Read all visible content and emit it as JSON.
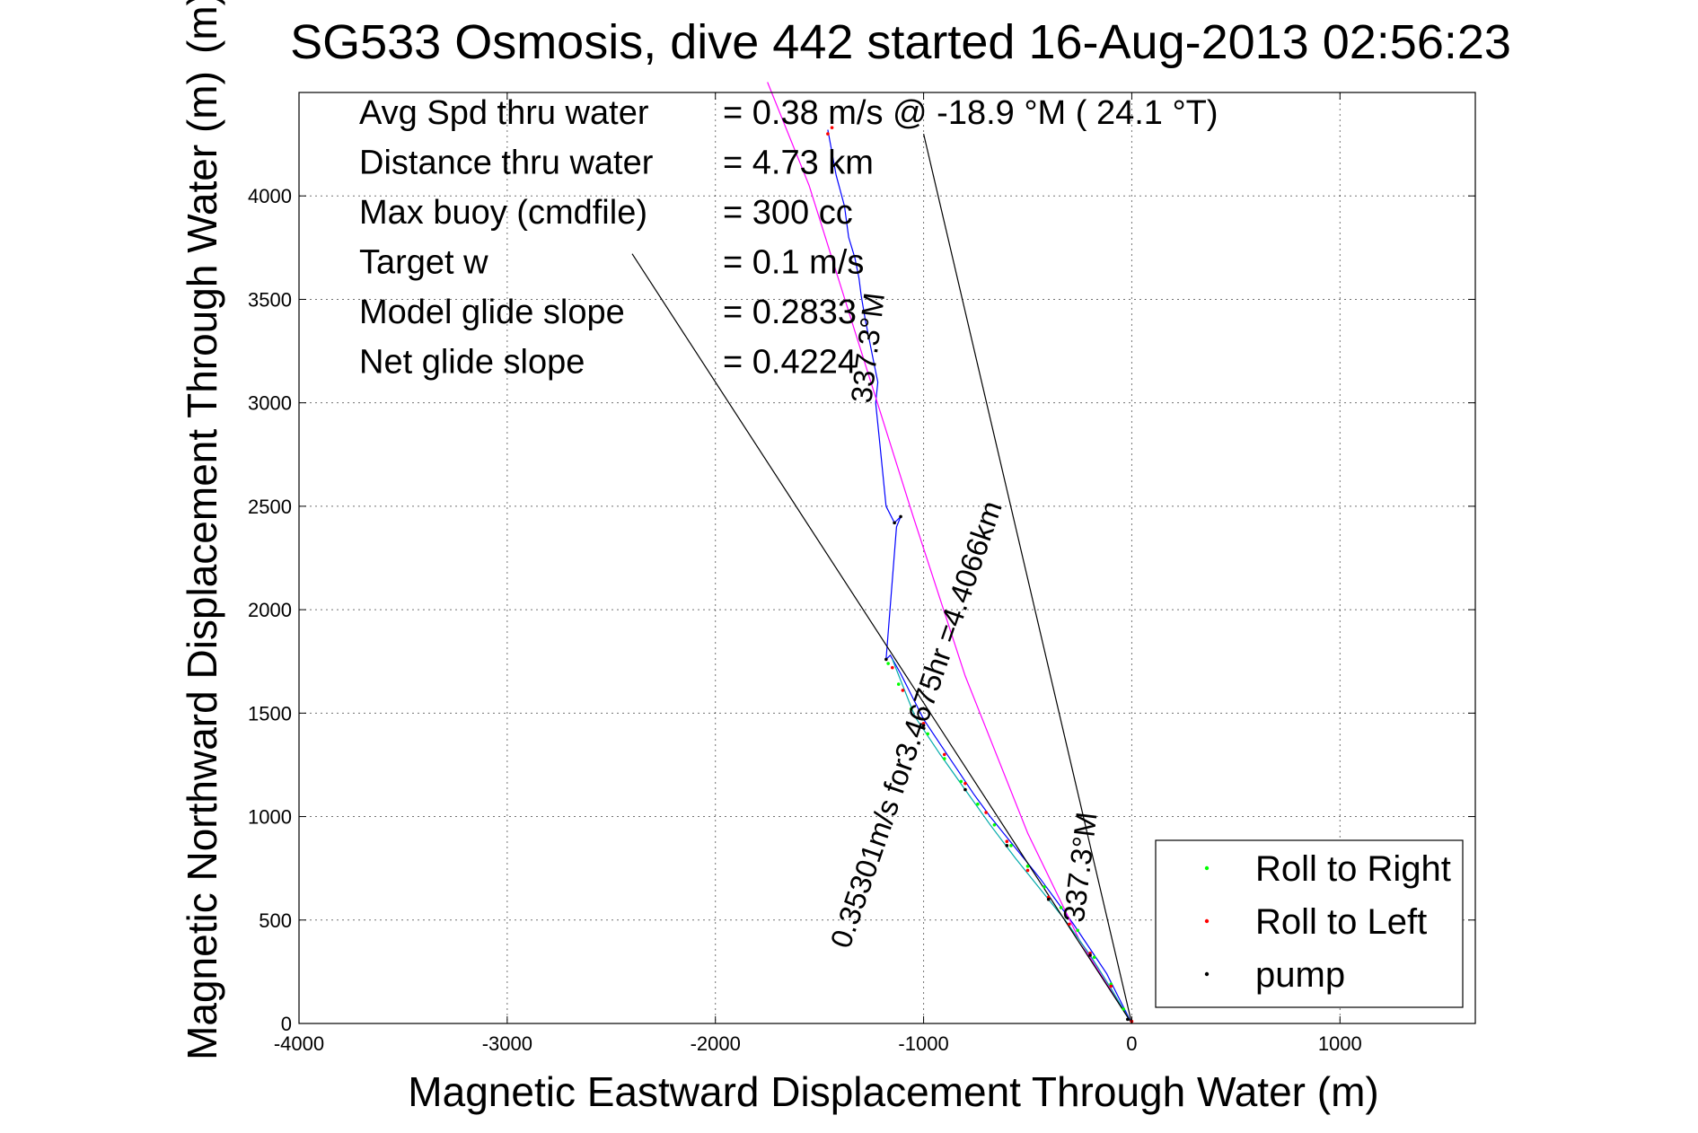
{
  "chart_data": {
    "type": "line",
    "title": "SG533 Osmosis, dive 442 started 16-Aug-2013 02:56:23",
    "title_overlay_glyph": "(m)",
    "xlabel": "Magnetic Eastward Displacement Through Water (m)",
    "ylabel": "Magnetic Northward Displacement Through Water (m)",
    "xlim": [
      -4000,
      1650
    ],
    "ylim": [
      0,
      4500
    ],
    "xticks": [
      -4000,
      -3000,
      -2000,
      -1000,
      0,
      1000
    ],
    "yticks": [
      0,
      500,
      1000,
      1500,
      2000,
      2500,
      3000,
      3500,
      4000
    ],
    "grid": true,
    "legend_position": "bottom-right",
    "legend": [
      {
        "name": "Roll to Right",
        "color": "#00ff00"
      },
      {
        "name": "Roll to Left",
        "color": "#ff0000"
      },
      {
        "name": "pump",
        "color": "#000000"
      }
    ],
    "info_lines": [
      {
        "label": "Avg Spd thru water",
        "value": "=  0.38 m/s @ -18.9 °M ( 24.1 °T)"
      },
      {
        "label": "Distance thru water",
        "value": "=  4.73 km"
      },
      {
        "label": "Max buoy (cmdfile)",
        "value": "= 300 cc"
      },
      {
        "label": "Target w",
        "value": "= 0.1 m/s"
      },
      {
        "label": "Model glide slope",
        "value": "= 0.2833"
      },
      {
        "label": "Net glide slope",
        "value": "= 0.4224"
      }
    ],
    "annotations": [
      {
        "text": "0.35301m/s for3.4675hr =4.4066km",
        "at": [
          -990,
          1430
        ],
        "angle": -71
      },
      {
        "text": "337.3°M",
        "at": [
          -1220,
          3260
        ],
        "angle": -83
      },
      {
        "text": "337.3°M",
        "at": [
          -200,
          750
        ],
        "angle": -83
      }
    ],
    "series": [
      {
        "name": "track",
        "color": "#0000ff",
        "x": [
          0,
          -50,
          -120,
          -200,
          -280,
          -360,
          -440,
          -520,
          -600,
          -680,
          -760,
          -840,
          -920,
          -1000,
          -1060,
          -1110,
          -1160,
          -1180,
          -1130,
          -1110,
          -1140,
          -1180,
          -1210,
          -1230,
          -1220,
          -1240,
          -1250,
          -1280,
          -1300,
          -1310,
          -1330,
          -1360,
          -1380,
          -1420,
          -1460
        ],
        "y": [
          0,
          100,
          240,
          360,
          480,
          590,
          700,
          800,
          900,
          1000,
          1110,
          1230,
          1350,
          1470,
          1590,
          1690,
          1780,
          1760,
          2400,
          2450,
          2420,
          2500,
          2800,
          3000,
          3100,
          3200,
          3250,
          3400,
          3520,
          3600,
          3700,
          3800,
          3950,
          4100,
          4320
        ]
      },
      {
        "name": "path-magenta",
        "color": "#ff00ff",
        "x": [
          0,
          -250,
          -500,
          -800,
          -1050,
          -1300,
          -1550,
          -1750
        ],
        "y": [
          0,
          400,
          920,
          1680,
          2450,
          3250,
          4050,
          4550
        ]
      },
      {
        "name": "path-cyan",
        "color": "#00aaaa",
        "x": [
          0,
          -100,
          -200,
          -320,
          -440,
          -560,
          -680,
          -800,
          -920,
          -1040,
          -1150
        ],
        "y": [
          0,
          170,
          330,
          500,
          650,
          800,
          960,
          1130,
          1300,
          1480,
          1760
        ]
      },
      {
        "name": "Roll to Right",
        "color": "#00ff00",
        "x": [
          -1170,
          -1120,
          -1060,
          -980,
          -900,
          -820,
          -740,
          -660,
          -580,
          -500,
          -420,
          -340,
          -260,
          -180,
          -100,
          -40
        ],
        "y": [
          1740,
          1640,
          1520,
          1400,
          1280,
          1170,
          1060,
          960,
          860,
          760,
          660,
          560,
          450,
          320,
          190,
          70
        ]
      },
      {
        "name": "Roll to Left",
        "color": "#ff0000",
        "x": [
          -1460,
          -1440,
          -1150,
          -1100,
          -1000,
          -900,
          -800,
          -700,
          -600,
          -500,
          -400,
          -300,
          -200,
          -100,
          0
        ],
        "y": [
          4300,
          4330,
          1720,
          1610,
          1450,
          1300,
          1160,
          1020,
          880,
          740,
          610,
          480,
          340,
          180,
          10
        ]
      },
      {
        "name": "pump",
        "color": "#000000",
        "x": [
          -1180,
          -1140,
          -1110,
          -1000,
          -800,
          -600,
          -400,
          -200,
          -20
        ],
        "y": [
          1760,
          2420,
          2450,
          1440,
          1130,
          860,
          600,
          330,
          20
        ]
      },
      {
        "name": "line-1",
        "color": "#000000",
        "x": [
          0,
          -2400
        ],
        "y": [
          0,
          3720
        ]
      },
      {
        "name": "line-2",
        "color": "#000000",
        "x": [
          0,
          -1000
        ],
        "y": [
          0,
          4300
        ]
      }
    ]
  }
}
